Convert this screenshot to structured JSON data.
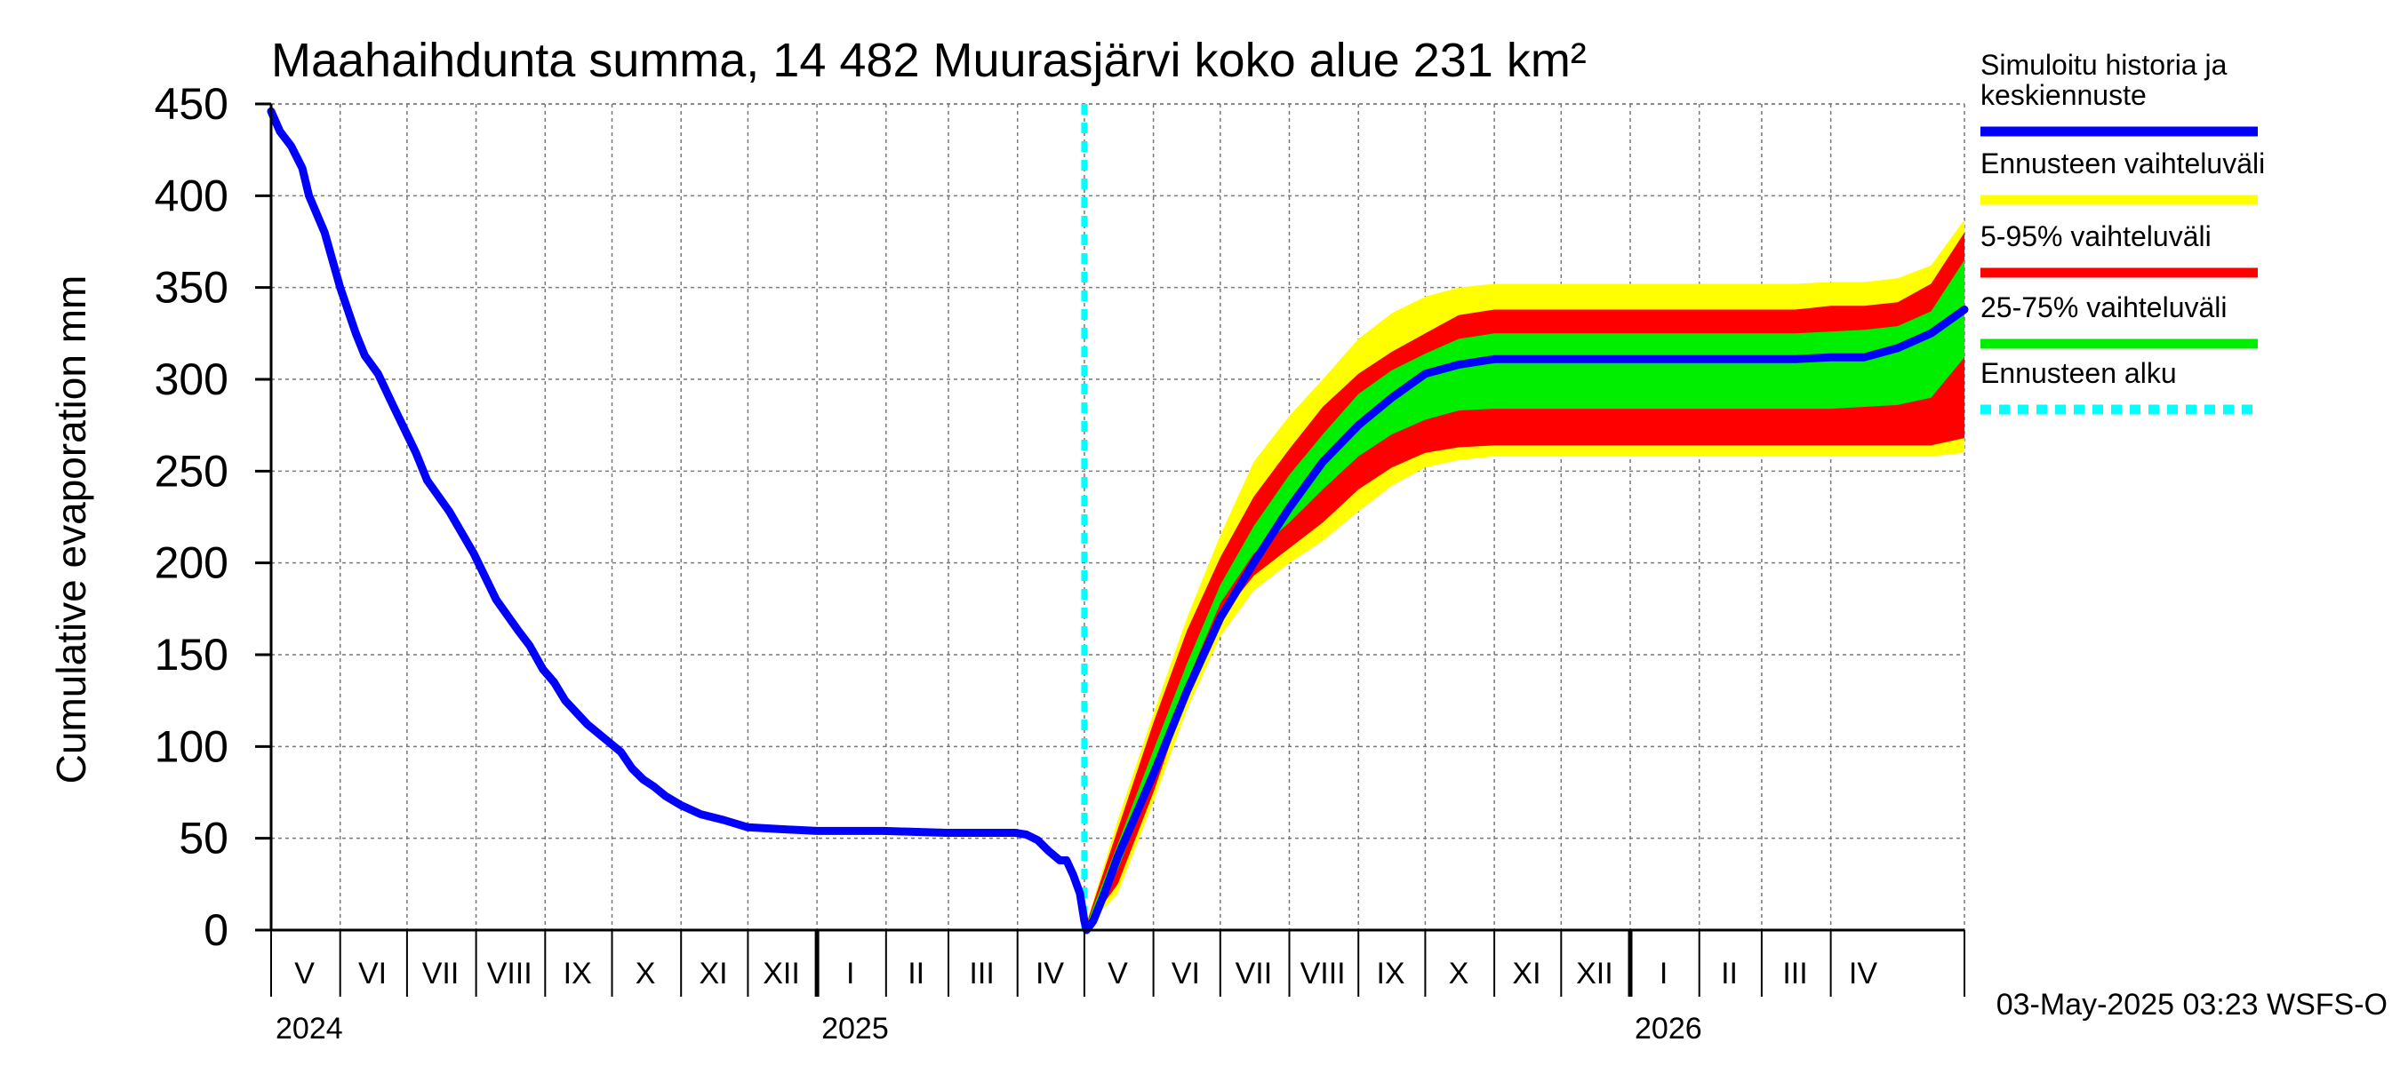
{
  "chart_data": {
    "type": "area",
    "title": "Maahaihdunta summa, 14 482 Muurasjärvi koko alue 231 km²",
    "ylabel": "Cumulative evaporation   mm",
    "xlabel": "",
    "ylim": [
      0,
      450
    ],
    "yticks": [
      0,
      50,
      100,
      150,
      200,
      250,
      300,
      350,
      400,
      450
    ],
    "xlim": [
      "2024-05-01",
      "2026-05-31"
    ],
    "grid": true,
    "legend_position": "right",
    "months": [
      {
        "label": "V",
        "start": "2024-05-01",
        "end": "2024-05-31"
      },
      {
        "label": "VI",
        "start": "2024-06-01",
        "end": "2024-06-30"
      },
      {
        "label": "VII",
        "start": "2024-07-01",
        "end": "2024-07-31"
      },
      {
        "label": "VIII",
        "start": "2024-08-01",
        "end": "2024-08-31"
      },
      {
        "label": "IX",
        "start": "2024-09-01",
        "end": "2024-09-30"
      },
      {
        "label": "X",
        "start": "2024-10-01",
        "end": "2024-10-31"
      },
      {
        "label": "XI",
        "start": "2024-11-01",
        "end": "2024-11-30"
      },
      {
        "label": "XII",
        "start": "2024-12-01",
        "end": "2024-12-31"
      },
      {
        "label": "I",
        "start": "2025-01-01",
        "end": "2025-01-31"
      },
      {
        "label": "II",
        "start": "2025-02-01",
        "end": "2025-02-28"
      },
      {
        "label": "III",
        "start": "2025-03-01",
        "end": "2025-03-31"
      },
      {
        "label": "IV",
        "start": "2025-04-01",
        "end": "2025-04-30"
      },
      {
        "label": "V",
        "start": "2025-05-01",
        "end": "2025-05-31"
      },
      {
        "label": "VI",
        "start": "2025-06-01",
        "end": "2025-06-30"
      },
      {
        "label": "VII",
        "start": "2025-07-01",
        "end": "2025-07-31"
      },
      {
        "label": "VIII",
        "start": "2025-08-01",
        "end": "2025-08-31"
      },
      {
        "label": "IX",
        "start": "2025-09-01",
        "end": "2025-09-30"
      },
      {
        "label": "X",
        "start": "2025-10-01",
        "end": "2025-10-31"
      },
      {
        "label": "XI",
        "start": "2025-11-01",
        "end": "2025-11-30"
      },
      {
        "label": "XII",
        "start": "2025-12-01",
        "end": "2025-12-31"
      },
      {
        "label": "I",
        "start": "2026-01-01",
        "end": "2026-01-31"
      },
      {
        "label": "II",
        "start": "2026-02-01",
        "end": "2026-02-28"
      },
      {
        "label": "III",
        "start": "2026-03-01",
        "end": "2026-03-31"
      },
      {
        "label": "IV",
        "start": "2026-04-01",
        "end": "2026-04-30"
      }
    ],
    "years": [
      {
        "label": "2024",
        "start": "2024-05-01"
      },
      {
        "label": "2025",
        "start": "2025-01-01"
      },
      {
        "label": "2026",
        "start": "2026-01-01"
      }
    ],
    "forecast_start": "2025-05-01",
    "x": [
      "2025-05-01",
      "2025-05-16",
      "2025-06-01",
      "2025-06-16",
      "2025-07-01",
      "2025-07-16",
      "2025-08-01",
      "2025-08-16",
      "2025-09-01",
      "2025-09-16",
      "2025-10-01",
      "2025-10-16",
      "2025-11-01",
      "2025-12-01",
      "2026-01-01",
      "2026-02-01",
      "2026-03-01",
      "2026-03-16",
      "2026-04-01",
      "2026-04-16",
      "2026-05-01",
      "2026-05-16",
      "2026-05-31"
    ],
    "series": [
      {
        "name": "Simuloitu historia ja keskiennuste",
        "color": "#0000ff",
        "points": [
          [
            "2024-05-01",
            446
          ],
          [
            "2024-05-05",
            435
          ],
          [
            "2024-05-10",
            427
          ],
          [
            "2024-05-15",
            415
          ],
          [
            "2024-05-18",
            400
          ],
          [
            "2024-05-25",
            380
          ],
          [
            "2024-06-01",
            350
          ],
          [
            "2024-06-08",
            325
          ],
          [
            "2024-06-12",
            313
          ],
          [
            "2024-06-18",
            303
          ],
          [
            "2024-06-25",
            285
          ],
          [
            "2024-07-01",
            270
          ],
          [
            "2024-07-05",
            260
          ],
          [
            "2024-07-10",
            245
          ],
          [
            "2024-07-20",
            228
          ],
          [
            "2024-07-31",
            205
          ],
          [
            "2024-08-10",
            180
          ],
          [
            "2024-08-20",
            163
          ],
          [
            "2024-08-25",
            155
          ],
          [
            "2024-08-31",
            142
          ],
          [
            "2024-09-05",
            135
          ],
          [
            "2024-09-10",
            125
          ],
          [
            "2024-09-20",
            112
          ],
          [
            "2024-09-30",
            102
          ],
          [
            "2024-10-05",
            97
          ],
          [
            "2024-10-10",
            88
          ],
          [
            "2024-10-15",
            82
          ],
          [
            "2024-10-20",
            78
          ],
          [
            "2024-10-25",
            73
          ],
          [
            "2024-11-01",
            68
          ],
          [
            "2024-11-10",
            63
          ],
          [
            "2024-11-20",
            60
          ],
          [
            "2024-12-01",
            56
          ],
          [
            "2024-12-15",
            55
          ],
          [
            "2025-01-01",
            54
          ],
          [
            "2025-01-31",
            54
          ],
          [
            "2025-02-28",
            53
          ],
          [
            "2025-03-31",
            53
          ],
          [
            "2025-04-05",
            52
          ],
          [
            "2025-04-10",
            49
          ],
          [
            "2025-04-15",
            43
          ],
          [
            "2025-04-20",
            38
          ],
          [
            "2025-04-23",
            38
          ],
          [
            "2025-04-26",
            30
          ],
          [
            "2025-04-29",
            20
          ],
          [
            "2025-05-01",
            5
          ],
          [
            "2025-05-02",
            0
          ],
          [
            "2025-05-05",
            5
          ],
          [
            "2025-05-10",
            20
          ],
          [
            "2025-05-16",
            40
          ],
          [
            "2025-06-01",
            85
          ],
          [
            "2025-06-16",
            130
          ],
          [
            "2025-07-01",
            170
          ],
          [
            "2025-07-16",
            200
          ],
          [
            "2025-08-01",
            230
          ],
          [
            "2025-08-16",
            255
          ],
          [
            "2025-09-01",
            275
          ],
          [
            "2025-09-16",
            290
          ],
          [
            "2025-10-01",
            303
          ],
          [
            "2025-10-16",
            308
          ],
          [
            "2025-11-01",
            311
          ],
          [
            "2025-12-01",
            311
          ],
          [
            "2026-01-01",
            311
          ],
          [
            "2026-02-01",
            311
          ],
          [
            "2026-03-01",
            311
          ],
          [
            "2026-03-16",
            311
          ],
          [
            "2026-04-01",
            312
          ],
          [
            "2026-04-16",
            312
          ],
          [
            "2026-05-01",
            317
          ],
          [
            "2026-05-16",
            325
          ],
          [
            "2026-05-31",
            338
          ]
        ]
      },
      {
        "name": "Ennusteen vaihteluväli",
        "color": "#ffff00",
        "upper": [
          0,
          60,
          118,
          170,
          215,
          255,
          280,
          300,
          322,
          336,
          345,
          350,
          352,
          352,
          352,
          352,
          352,
          352,
          353,
          353,
          355,
          362,
          387
        ],
        "lower": [
          0,
          20,
          70,
          120,
          160,
          185,
          200,
          212,
          228,
          242,
          252,
          256,
          258,
          258,
          258,
          258,
          258,
          258,
          258,
          258,
          258,
          258,
          260
        ]
      },
      {
        "name": "5-95% vaihteluväli",
        "color": "#ff0000",
        "upper": [
          0,
          55,
          113,
          163,
          203,
          236,
          262,
          285,
          303,
          315,
          325,
          335,
          338,
          338,
          338,
          338,
          338,
          338,
          340,
          340,
          342,
          352,
          380
        ],
        "lower": [
          0,
          25,
          75,
          128,
          170,
          193,
          208,
          222,
          240,
          252,
          260,
          263,
          264,
          264,
          264,
          264,
          264,
          264,
          264,
          264,
          264,
          264,
          268
        ]
      },
      {
        "name": "25-75% vaihteluväli",
        "color": "#00ee00",
        "upper": [
          0,
          47,
          98,
          145,
          188,
          220,
          248,
          270,
          292,
          305,
          314,
          322,
          325,
          325,
          325,
          325,
          325,
          325,
          326,
          327,
          329,
          337,
          365
        ],
        "lower": [
          0,
          33,
          83,
          135,
          178,
          205,
          222,
          240,
          258,
          270,
          278,
          283,
          284,
          284,
          284,
          284,
          284,
          284,
          284,
          285,
          286,
          290,
          312
        ]
      }
    ],
    "forecast_marker": {
      "name": "Ennusteen alku",
      "color": "#00ffff"
    },
    "footer": "03-May-2025 03:23 WSFS-O"
  }
}
